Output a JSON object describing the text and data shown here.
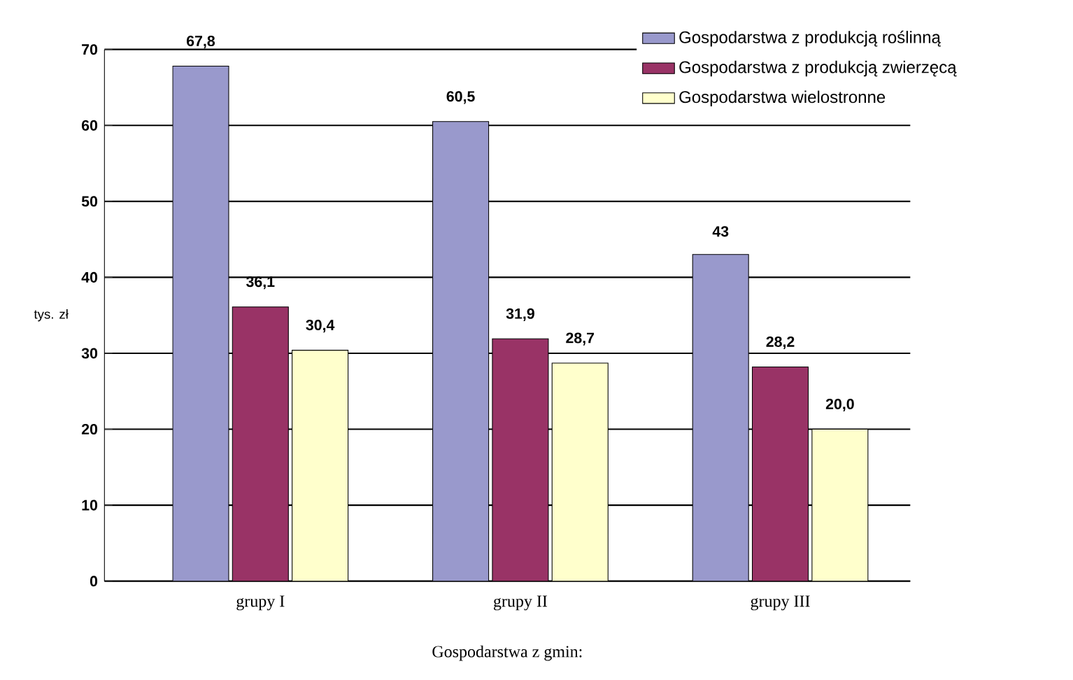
{
  "chart_data": {
    "type": "bar",
    "ylabel": "tys. zł",
    "xlabel": "Gospodarstwa z gmin:",
    "categories": [
      "grupy I",
      "grupy II",
      "grupy III"
    ],
    "series": [
      {
        "name": "Gospodarstwa z produkcją roślinną",
        "color": "#9999cc",
        "values": [
          67.8,
          60.5,
          43
        ],
        "value_labels": [
          "67,8",
          "60,5",
          "43"
        ]
      },
      {
        "name": "Gospodarstwa z produkcją zwierzęcą",
        "color": "#993366",
        "values": [
          36.1,
          31.9,
          28.2
        ],
        "value_labels": [
          "36,1",
          "31,9",
          "28,2"
        ]
      },
      {
        "name": "Gospodarstwa wielostronne",
        "color": "#ffffcc",
        "values": [
          30.4,
          28.7,
          20.0
        ],
        "value_labels": [
          "30,4",
          "28,7",
          "20,0"
        ]
      }
    ],
    "ylim": [
      0,
      70
    ],
    "yticks": [
      0,
      10,
      20,
      30,
      40,
      50,
      60,
      70
    ],
    "grid": "y",
    "legend": "top right"
  }
}
